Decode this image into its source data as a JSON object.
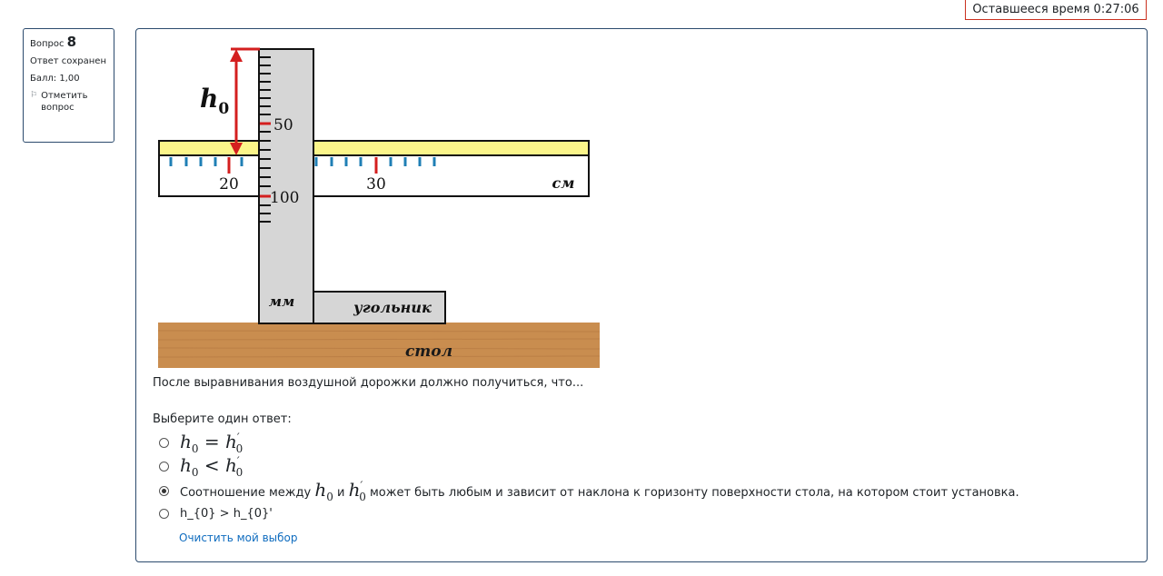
{
  "timer": {
    "label": "Оставшееся время 0:27:06"
  },
  "question_info": {
    "number_label": "Вопрос",
    "number": "8",
    "status": "Ответ сохранен",
    "grade": "Балл: 1,00",
    "flag_label": "Отметить вопрос"
  },
  "figure": {
    "h0_label": "h",
    "h0_sub": "0",
    "vertical_scale_50": "50",
    "vertical_scale_100": "100",
    "horizontal_scale_20": "20",
    "horizontal_scale_30": "30",
    "unit_cm": "см",
    "unit_mm": "мм",
    "square_label": "угольник",
    "table_label": "стол",
    "colors": {
      "track": "#fbf58a",
      "ruler": "#d6d6d6",
      "arrow": "#d41f1f",
      "ticks": "#1f7fb5",
      "table": "#c98d4f"
    }
  },
  "question_text": "После выравнивания воздушной дорожки должно получиться, что...",
  "prompt": "Выберите один ответ:",
  "answers": [
    {
      "lhs": "h",
      "lhs_sub": "0",
      "op": "=",
      "rhs": "h",
      "rhs_sup": "′",
      "rhs_sub": "0"
    },
    {
      "lhs": "h",
      "lhs_sub": "0",
      "op": "<",
      "rhs": "h",
      "rhs_sup": "′",
      "rhs_sub": "0"
    },
    {
      "pre": "Соотношение между",
      "a": "h",
      "a_sub": "0",
      "mid": "и",
      "b": "h",
      "b_sup": "′",
      "b_sub": "0",
      "post": "может быть любым и зависит от наклона к горизонту поверхности стола, на котором стоит установка."
    },
    {
      "text": "h_{0} > h_{0}'"
    }
  ],
  "clear_label": "Очистить мой выбор"
}
